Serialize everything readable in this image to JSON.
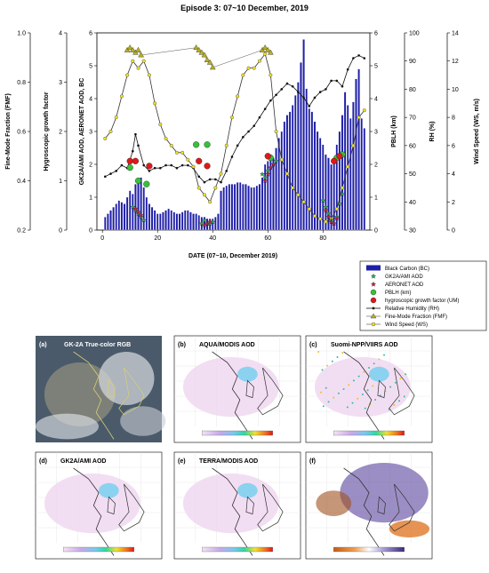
{
  "chart_data": [
    {
      "type": "bar+line",
      "title": "Episode 3: 07~10 December, 2019",
      "xlabel": "DATE (07~10, December 2019)",
      "xlim": [
        -2,
        97
      ],
      "x_ticks": [
        "0",
        "20",
        "40",
        "60",
        "80"
      ],
      "axes": {
        "fmf": {
          "label": "Fine-Mode Fraction (FMF)",
          "ylim": [
            0.2,
            1.0
          ],
          "ticks": [
            "0.2",
            "0.4",
            "0.6",
            "0.8",
            "1.0"
          ]
        },
        "hgf": {
          "label": "Hygroscopic growth factor",
          "ylim": [
            0,
            4
          ],
          "ticks": [
            "0",
            "1",
            "2",
            "3",
            "4"
          ]
        },
        "aod": {
          "label": "GK2A/AMI AOD, AERONET AOD, BC",
          "ylim": [
            0,
            6
          ],
          "ticks": [
            "0",
            "1",
            "2",
            "3",
            "4",
            "5",
            "6"
          ]
        },
        "pblh": {
          "label": "PBLH (km)",
          "ylim": [
            0,
            6
          ],
          "ticks": [
            "0",
            "1",
            "2",
            "3",
            "4",
            "5",
            "6"
          ]
        },
        "rh": {
          "label": "RH (%)",
          "ylim": [
            30,
            100
          ],
          "ticks": [
            "30",
            "40",
            "50",
            "60",
            "70",
            "80",
            "90",
            "100"
          ]
        },
        "ws": {
          "label": "Wind Speed (WS, m/s)",
          "ylim": [
            0,
            14
          ],
          "ticks": [
            "0",
            "2",
            "4",
            "6",
            "8",
            "10",
            "12",
            "14"
          ]
        }
      },
      "legend_position": "bottom-right",
      "legend": [
        "Black Carbon (BC)",
        "GK2A/AMI AOD",
        "AERONET AOD",
        "PBLH (km)",
        "hygroscopic growth factor (UM)",
        "Relative Humidity (RH)",
        "Fine-Mode Fraction (FMF)",
        "Wind Speed (WS)"
      ],
      "colors": {
        "bc": "#1e1ea8",
        "gk2a": "#22aa44",
        "aeronet": "#c01848",
        "pblh": "#36c236",
        "hgf": "#e01818",
        "rh": "#111111",
        "fmf": "#b8b020",
        "ws": "#f0e020"
      },
      "series": [
        {
          "name": "Black Carbon (BC)",
          "axis": "aod",
          "kind": "bar",
          "x": [
            1,
            2,
            3,
            4,
            5,
            6,
            7,
            8,
            9,
            10,
            11,
            12,
            13,
            14,
            15,
            16,
            17,
            18,
            19,
            20,
            21,
            22,
            23,
            24,
            25,
            26,
            27,
            28,
            29,
            30,
            31,
            32,
            33,
            34,
            35,
            36,
            37,
            38,
            39,
            40,
            41,
            42,
            43,
            44,
            45,
            46,
            47,
            48,
            49,
            50,
            51,
            52,
            53,
            54,
            55,
            56,
            57,
            58,
            59,
            60,
            61,
            62,
            63,
            64,
            65,
            66,
            67,
            68,
            69,
            70,
            71,
            72,
            73,
            74,
            75,
            76,
            77,
            78,
            79,
            80,
            81,
            82,
            83,
            84,
            85,
            86,
            87,
            88,
            89,
            90,
            91,
            92,
            93,
            94,
            95
          ],
          "y": [
            0.4,
            0.5,
            0.6,
            0.7,
            0.8,
            0.9,
            0.85,
            0.8,
            1.0,
            1.2,
            1.1,
            1.4,
            1.5,
            1.6,
            1.3,
            1.0,
            0.8,
            0.7,
            0.6,
            0.5,
            0.5,
            0.55,
            0.6,
            0.65,
            0.6,
            0.55,
            0.5,
            0.5,
            0.55,
            0.6,
            0.6,
            0.55,
            0.5,
            0.5,
            0.45,
            0.4,
            0.4,
            0.35,
            0.35,
            0.35,
            0.4,
            0.5,
            1.2,
            1.3,
            1.35,
            1.4,
            1.4,
            1.4,
            1.45,
            1.45,
            1.4,
            1.4,
            1.35,
            1.3,
            1.3,
            1.35,
            1.4,
            1.6,
            2.0,
            2.1,
            2.3,
            2.2,
            2.5,
            2.8,
            3.0,
            3.3,
            3.5,
            3.6,
            3.8,
            4.1,
            4.5,
            5.1,
            5.8,
            4.3,
            3.7,
            3.6,
            3.3,
            3.0,
            2.8,
            2.6,
            2.3,
            2.2,
            2.0,
            2.2,
            2.6,
            3.0,
            3.5,
            4.2,
            3.8,
            3.4,
            3.9,
            4.6,
            4.9,
            3.4,
            3.1
          ]
        },
        {
          "name": "Relative Humidity (RH)",
          "axis": "rh",
          "kind": "line",
          "x": [
            1,
            3,
            5,
            7,
            9,
            11,
            12,
            13,
            15,
            17,
            19,
            21,
            23,
            25,
            27,
            29,
            31,
            33,
            35,
            37,
            39,
            41,
            43,
            45,
            47,
            49,
            51,
            53,
            55,
            57,
            59,
            61,
            63,
            65,
            67,
            69,
            71,
            73,
            75,
            77,
            79,
            81,
            83,
            85,
            87,
            89,
            91,
            93,
            95
          ],
          "y": [
            49,
            50,
            51,
            53,
            52,
            58,
            64,
            60,
            53,
            51,
            52,
            52,
            53,
            53,
            52,
            53,
            53,
            52,
            49,
            47,
            48,
            48,
            47,
            51,
            56,
            60,
            63,
            65,
            67,
            70,
            73,
            76,
            78,
            80,
            82,
            81,
            79,
            77,
            74,
            77,
            79,
            80,
            83,
            83,
            81,
            87,
            91,
            92,
            91
          ]
        },
        {
          "name": "Fine-Mode Fraction (FMF)",
          "axis": "fmf",
          "kind": "triangles",
          "x": [
            9,
            10,
            11,
            12,
            13,
            14,
            34,
            35,
            36,
            37,
            38,
            39,
            40,
            58,
            59,
            60,
            61
          ],
          "y": [
            0.93,
            0.94,
            0.93,
            0.92,
            0.93,
            0.91,
            0.94,
            0.93,
            0.92,
            0.91,
            0.89,
            0.88,
            0.86,
            0.93,
            0.94,
            0.93,
            0.92
          ]
        },
        {
          "name": "Wind Speed (WS)",
          "axis": "ws",
          "kind": "line",
          "x": [
            1,
            3,
            5,
            7,
            9,
            11,
            13,
            15,
            17,
            19,
            21,
            23,
            25,
            27,
            29,
            31,
            33,
            35,
            37,
            39,
            41,
            43,
            45,
            47,
            49,
            51,
            53,
            55,
            57,
            59,
            61,
            63,
            65,
            67,
            69,
            71,
            73,
            75,
            77,
            79,
            81,
            83,
            85,
            87,
            89,
            91,
            93,
            95
          ],
          "y": [
            6.5,
            7,
            8,
            9.5,
            11,
            12,
            11.5,
            12,
            11,
            9,
            7.5,
            6.5,
            6,
            5.5,
            5.5,
            5,
            4.5,
            3,
            2.5,
            2,
            3,
            4,
            6,
            8,
            9.5,
            11,
            11.5,
            11.5,
            12,
            12.5,
            11,
            7,
            5,
            4,
            3,
            2.5,
            2,
            1.5,
            1,
            0.8,
            0.6,
            0.8,
            1.5,
            3,
            4.5,
            6,
            8,
            8.5
          ]
        },
        {
          "name": "GK2A/AMI AOD",
          "axis": "aod",
          "kind": "stars",
          "x": [
            11,
            12,
            13,
            14,
            15,
            36,
            37,
            38,
            39,
            40,
            58,
            59,
            60,
            61,
            62,
            63,
            80,
            81,
            82,
            83,
            84,
            85,
            86,
            87
          ],
          "y": [
            0.7,
            0.6,
            0.5,
            0.4,
            0.3,
            0.2,
            0.3,
            0.2,
            0.2,
            0.25,
            1.7,
            1.6,
            1.8,
            1.9,
            2.0,
            2.1,
            0.9,
            0.7,
            0.5,
            0.3,
            0.2,
            0.4,
            0.8,
            1.1
          ]
        },
        {
          "name": "AERONET AOD",
          "axis": "aod",
          "kind": "stars",
          "x": [
            12,
            13,
            14,
            37,
            38,
            39,
            59,
            60,
            61,
            62,
            81,
            82,
            83,
            84,
            85
          ],
          "y": [
            0.65,
            0.55,
            0.45,
            0.15,
            0.2,
            0.25,
            1.5,
            1.7,
            1.9,
            2.0,
            0.6,
            0.4,
            0.25,
            0.2,
            0.35
          ]
        },
        {
          "name": "PBLH (km)",
          "axis": "pblh",
          "kind": "points",
          "x": [
            10,
            13,
            16,
            34,
            38,
            61,
            85,
            87
          ],
          "y": [
            1.9,
            1.5,
            1.4,
            2.6,
            2.6,
            2.2,
            2.2,
            2.3
          ]
        },
        {
          "name": "hygroscopic growth factor (UM)",
          "axis": "hgf",
          "kind": "points",
          "x": [
            10,
            12,
            17,
            35,
            38,
            60,
            84,
            86
          ],
          "y": [
            1.4,
            1.4,
            1.3,
            1.4,
            1.3,
            1.5,
            1.4,
            1.5
          ]
        }
      ]
    }
  ],
  "panels": [
    {
      "id": "a",
      "label": "(a)",
      "title": "GK-2A True-color RGB"
    },
    {
      "id": "b",
      "label": "(b)",
      "title": "AQUA/MODIS AOD"
    },
    {
      "id": "c",
      "label": "(c)",
      "title": "Suomi-NPP/VIIRS  AOD"
    },
    {
      "id": "d",
      "label": "(d)",
      "title": "GK2A/AMI AOD"
    },
    {
      "id": "e",
      "label": "(e)",
      "title": "TERRA/MODIS AOD"
    },
    {
      "id": "f",
      "label": "(f)",
      "title": ""
    }
  ]
}
